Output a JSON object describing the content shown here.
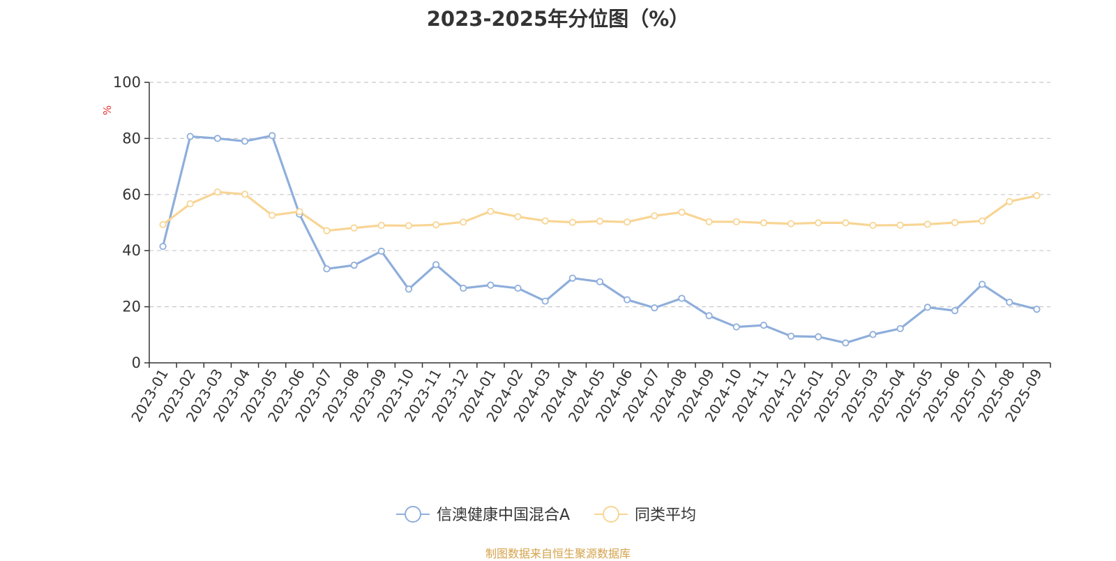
{
  "chart_data": {
    "type": "line",
    "title": "2023-2025年分位图（%）",
    "ylabel": "%",
    "xlabel": "",
    "ylim": [
      0,
      100
    ],
    "yticks": [
      0,
      20,
      40,
      60,
      80,
      100
    ],
    "grid": true,
    "legend_position": "bottom-center",
    "categories": [
      "2023-01",
      "2023-02",
      "2023-03",
      "2023-04",
      "2023-05",
      "2023-06",
      "2023-07",
      "2023-08",
      "2023-09",
      "2023-10",
      "2023-11",
      "2023-12",
      "2024-01",
      "2024-02",
      "2024-03",
      "2024-04",
      "2024-05",
      "2024-06",
      "2024-07",
      "2024-08",
      "2024-09",
      "2024-10",
      "2024-11",
      "2024-12",
      "2025-01",
      "2025-02",
      "2025-03",
      "2025-04",
      "2025-05",
      "2025-06",
      "2025-07",
      "2025-08",
      "2025-09"
    ],
    "series": [
      {
        "name": "信澳健康中国混合A",
        "color": "#8eaedb",
        "values": [
          41.5,
          80.7,
          80.0,
          79.0,
          81.0,
          53.0,
          33.5,
          34.8,
          39.8,
          26.3,
          35.0,
          26.6,
          27.7,
          26.6,
          22.0,
          30.2,
          28.9,
          22.5,
          19.6,
          23.0,
          16.8,
          12.8,
          13.4,
          9.5,
          9.3,
          7.1,
          10.1,
          12.2,
          19.8,
          18.6,
          28.0,
          21.6,
          19.1
        ]
      },
      {
        "name": "同类平均",
        "color": "#f8d594",
        "values": [
          49.3,
          56.7,
          60.9,
          60.1,
          52.6,
          53.9,
          47.1,
          48.1,
          49.0,
          48.9,
          49.2,
          50.2,
          54.0,
          52.1,
          50.6,
          50.1,
          50.5,
          50.2,
          52.4,
          53.7,
          50.3,
          50.3,
          49.9,
          49.6,
          49.9,
          49.9,
          49.0,
          49.1,
          49.4,
          50.0,
          50.6,
          57.5,
          59.6
        ]
      }
    ]
  },
  "footer": {
    "source": "制图数据来自恒生聚源数据库"
  }
}
